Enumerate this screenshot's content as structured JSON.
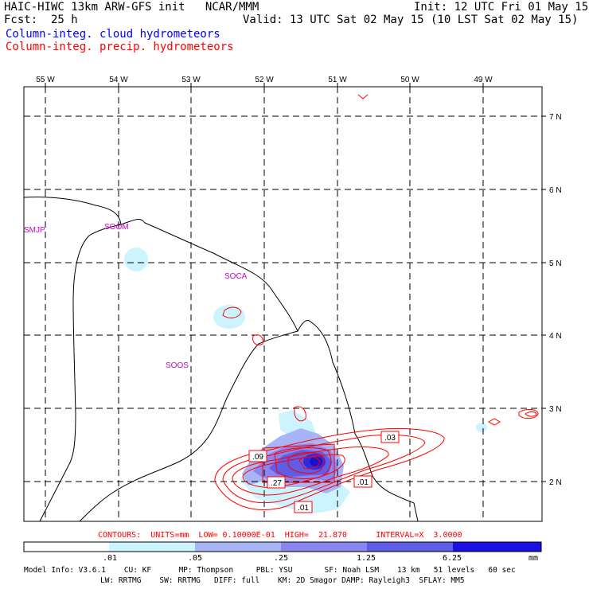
{
  "header": {
    "title_left": "HAIC-HIWC 13km ARW-GFS init   NCAR/MMM",
    "init": "Init: 12 UTC Fri 01 May 15",
    "fcst_label": "Fcst:",
    "fcst_value": "25 h",
    "valid": "Valid: 13 UTC Sat 02 May 15 (10 LST Sat 02 May 15)",
    "legend_cloud": "Column-integ. cloud hydrometeors",
    "legend_precip": "Column-integ. precip. hydrometeors"
  },
  "colors": {
    "cloud_text": "#0000ff",
    "precip_text": "#ff0000",
    "station_text": "#cc00cc",
    "contour": "#ff0000",
    "shade": [
      "#ffffff",
      "#ccf4ff",
      "#a7b4f6",
      "#8a86ef",
      "#5f5ce6",
      "#2e2ae0",
      "#0000e6"
    ]
  },
  "map": {
    "lon_labels": [
      "55 W",
      "54 W",
      "53 W",
      "52 W",
      "51 W",
      "50 W",
      "49 W"
    ],
    "lat_labels": [
      "7 N",
      "6 N",
      "5 N",
      "4 N",
      "3 N",
      "2 N"
    ],
    "stations": [
      "SMJP",
      "SOOM",
      "SOCA",
      "SOOS"
    ],
    "contour_labels": [
      ".03",
      ".09",
      ".27",
      ".01",
      ".01"
    ]
  },
  "footer": {
    "contours_line": "CONTOURS:  UNITS=mm  LOW= 0.10000E-01  HIGH=  21.870      INTERVAL=X  3.0000",
    "scale_ticks": [
      ".01",
      ".05",
      ".25",
      "1.25",
      "6.25"
    ],
    "scale_unit": "mm",
    "model_line1": "Model Info: V3.6.1    CU: KF      MP: Thompson     PBL: YSU       SF: Noah LSM    13 km   51 levels   60 sec",
    "model_line2": "LW: RRTMG    SW: RRTMG   DIFF: full    KM: 2D Smagor DAMP: Rayleigh3  SFLAY: MM5"
  }
}
